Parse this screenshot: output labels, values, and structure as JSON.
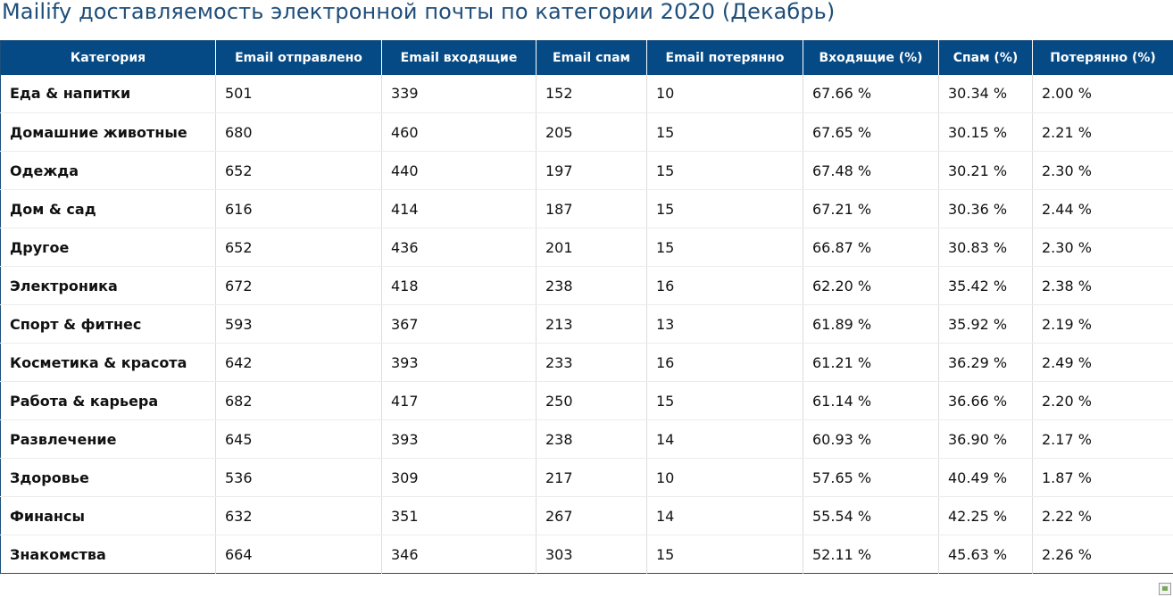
{
  "title": "Mailify доставляемость электронной почты по категории 2020 (Декабрь)",
  "table": {
    "headers": [
      "Категория",
      "Email отправлено",
      "Email входящие",
      "Email спам",
      "Email потерянно",
      "Входящие (%)",
      "Спам (%)",
      "Потерянно (%)"
    ],
    "rows": [
      [
        "Еда & напитки",
        "501",
        "339",
        "152",
        "10",
        "67.66 %",
        "30.34 %",
        "2.00 %"
      ],
      [
        "Домашние животные",
        "680",
        "460",
        "205",
        "15",
        "67.65 %",
        "30.15 %",
        "2.21 %"
      ],
      [
        "Одежда",
        "652",
        "440",
        "197",
        "15",
        "67.48 %",
        "30.21 %",
        "2.30 %"
      ],
      [
        "Дом & сад",
        "616",
        "414",
        "187",
        "15",
        "67.21 %",
        "30.36 %",
        "2.44 %"
      ],
      [
        "Другое",
        "652",
        "436",
        "201",
        "15",
        "66.87 %",
        "30.83 %",
        "2.30 %"
      ],
      [
        "Электроника",
        "672",
        "418",
        "238",
        "16",
        "62.20 %",
        "35.42 %",
        "2.38 %"
      ],
      [
        "Спорт & фитнес",
        "593",
        "367",
        "213",
        "13",
        "61.89 %",
        "35.92 %",
        "2.19 %"
      ],
      [
        "Косметика & красота",
        "642",
        "393",
        "233",
        "16",
        "61.21 %",
        "36.29 %",
        "2.49 %"
      ],
      [
        "Работа & карьера",
        "682",
        "417",
        "250",
        "15",
        "61.14 %",
        "36.66 %",
        "2.20 %"
      ],
      [
        "Развлечение",
        "645",
        "393",
        "238",
        "14",
        "60.93 %",
        "36.90 %",
        "2.17 %"
      ],
      [
        "Здоровье",
        "536",
        "309",
        "217",
        "10",
        "57.65 %",
        "40.49 %",
        "1.87 %"
      ],
      [
        "Финансы",
        "632",
        "351",
        "267",
        "14",
        "55.54 %",
        "42.25 %",
        "2.22 %"
      ],
      [
        "Знакомства",
        "664",
        "346",
        "303",
        "15",
        "52.11 %",
        "45.63 %",
        "2.26 %"
      ]
    ]
  },
  "colors": {
    "header_bg": "#064a85",
    "title": "#1f4e79"
  },
  "icons": {
    "broken_image": "broken-image-icon"
  }
}
